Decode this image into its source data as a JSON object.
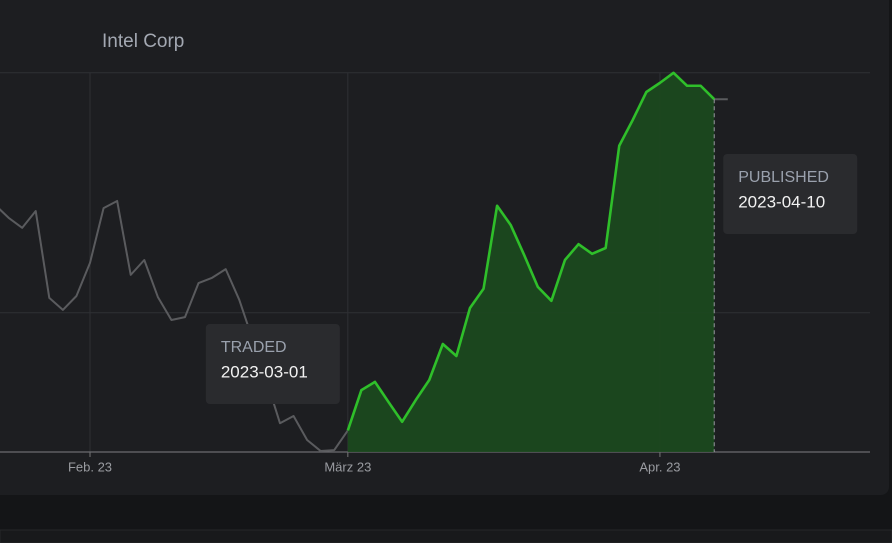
{
  "chart_data": {
    "type": "line",
    "title": "Intel Corp",
    "categories": [
      null,
      null,
      null,
      null,
      null,
      null,
      null,
      "Feb. 23",
      null,
      null,
      null,
      null,
      null,
      null,
      null,
      null,
      null,
      null,
      null,
      null,
      null,
      null,
      null,
      null,
      null,
      null,
      "März 23",
      null,
      null,
      null,
      null,
      null,
      null,
      null,
      null,
      null,
      null,
      null,
      null,
      null,
      null,
      null,
      null,
      null,
      null,
      null,
      null,
      null,
      null,
      "Apr. 23",
      null,
      null,
      null,
      null,
      null
    ],
    "series": [
      {
        "color": "#5a5b5e",
        "values": [
          29.75,
          29.48,
          29.27,
          29.62,
          27.81,
          27.56,
          27.85,
          28.54,
          29.68,
          29.83,
          28.29,
          28.6,
          27.83,
          27.35,
          27.41,
          28.12,
          28.23,
          28.41,
          27.77,
          26.93,
          26.1,
          25.2,
          25.35,
          24.85,
          24.62,
          24.64,
          25.05,
          null,
          null,
          null,
          null,
          null,
          null,
          null,
          null,
          null,
          null,
          null,
          null,
          null,
          null,
          null,
          null,
          null,
          null,
          null,
          null,
          null,
          null,
          null,
          null,
          null,
          null,
          31.95,
          31.95
        ]
      },
      {
        "color": "#2fbf2a",
        "fill": true,
        "values": [
          null,
          null,
          null,
          null,
          null,
          null,
          null,
          null,
          null,
          null,
          null,
          null,
          null,
          null,
          null,
          null,
          null,
          null,
          null,
          null,
          null,
          null,
          null,
          null,
          null,
          null,
          25.05,
          25.89,
          26.06,
          25.64,
          25.23,
          25.68,
          26.1,
          26.85,
          26.6,
          27.6,
          28.0,
          29.73,
          29.33,
          28.7,
          28.04,
          27.75,
          28.6,
          28.93,
          28.73,
          28.85,
          30.98,
          31.52,
          32.1,
          32.29,
          32.5,
          32.23,
          32.23,
          31.95,
          null
        ]
      }
    ],
    "ylim": [
      24.6,
      32.8
    ],
    "ygrid": [
      27.5,
      32.5
    ],
    "annotations": [
      {
        "label": "TRADED",
        "date": "2023-03-01"
      },
      {
        "label": "PUBLISHED",
        "date": "2023-04-10"
      }
    ]
  }
}
